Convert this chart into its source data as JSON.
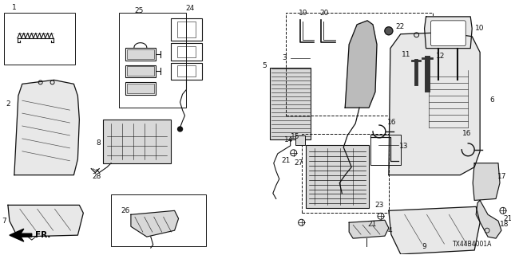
{
  "bg_color": "#ffffff",
  "diagram_id": "TX44B4001A",
  "line_color": "#111111",
  "gray_fill": "#d8d8d8",
  "light_fill": "#e8e8e8",
  "font_size": 6.5
}
